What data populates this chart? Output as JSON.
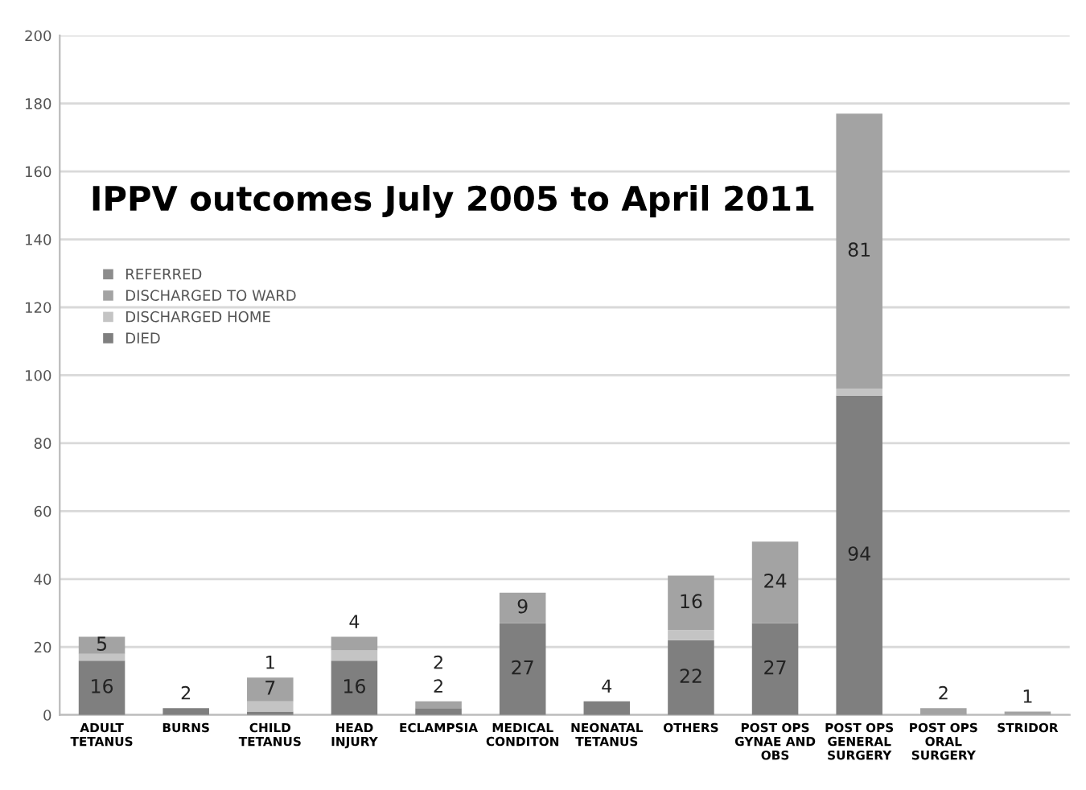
{
  "chart_data": {
    "type": "bar",
    "stacked": true,
    "title": "IPPV outcomes July 2005 to April 2011",
    "categories": [
      "ADULT\nTETANUS",
      "BURNS",
      "CHILD\nTETANUS",
      "HEAD\nINJURY",
      "ECLAMPSIA",
      "MEDICAL\nCONDITON",
      "NEONATAL\nTETANUS",
      "OTHERS",
      "POST OPS\nGYNAE AND\nOBS",
      "POST OPS\nGENERAL\nSURGERY",
      "POST OPS\nORAL\nSURGERY",
      "STRIDOR"
    ],
    "series": [
      {
        "name": "DIED",
        "color": "#7f7f7f",
        "values": [
          16,
          2,
          1,
          16,
          2,
          27,
          4,
          22,
          27,
          94,
          null,
          null
        ],
        "value_labels": [
          "16",
          "2",
          "1",
          "16",
          "2",
          "27",
          "4",
          "22",
          "27",
          "94",
          null,
          null
        ]
      },
      {
        "name": "DISCHARGED HOME",
        "color": "#c4c4c4",
        "values": [
          2,
          null,
          3,
          3,
          null,
          null,
          null,
          3,
          null,
          2,
          null,
          null
        ],
        "value_labels": [
          null,
          null,
          null,
          null,
          null,
          null,
          null,
          null,
          null,
          null,
          null,
          null
        ]
      },
      {
        "name": "DISCHARGED TO WARD",
        "color": "#a3a3a3",
        "values": [
          5,
          null,
          7,
          4,
          2,
          9,
          null,
          16,
          24,
          81,
          2,
          1
        ],
        "value_labels": [
          "5",
          null,
          "7",
          "4",
          "2",
          "9",
          null,
          "16",
          "24",
          "81",
          "2",
          "1"
        ]
      },
      {
        "name": "REFERRED",
        "color": "#8c8c8c",
        "values": [
          null,
          null,
          null,
          null,
          null,
          null,
          null,
          null,
          null,
          null,
          null,
          null
        ]
      }
    ],
    "ylim": [
      0,
      200
    ],
    "yticks": [
      0,
      20,
      40,
      60,
      80,
      100,
      120,
      140,
      160,
      180,
      200
    ],
    "grid": "y",
    "legend": "left"
  }
}
